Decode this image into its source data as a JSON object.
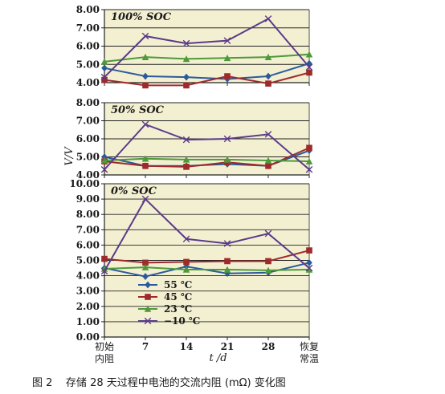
{
  "caption": "图 2    存储 28 天过程中电池的交流内阻 (mΩ) 变化图",
  "colors": {
    "panel_bg": "#f3f0d2",
    "series": [
      "#2b5a9c",
      "#9e2a2b",
      "#4e9a3a",
      "#5b3a8a"
    ]
  },
  "chart_data": {
    "type": "line",
    "xlabel": "t /d",
    "ylabel": "V/V",
    "x_categories": [
      "初始\n内阻",
      "7",
      "14",
      "21",
      "28",
      "恢复\n常温"
    ],
    "grid": "horizontal",
    "legend_position": "inside bottom-left of bottom panel",
    "series_names": [
      "55 ℃",
      "45 ℃",
      "23 ℃",
      "−10 ℃"
    ],
    "series_markers": [
      "diamond",
      "square",
      "triangle",
      "x"
    ],
    "panels": [
      {
        "title": "100% SOC",
        "ylim": [
          4.0,
          8.0
        ],
        "yticks": [
          "4.00",
          "5.00",
          "6.00",
          "7.00",
          "8.00"
        ],
        "series": [
          {
            "values": [
              4.8,
              4.35,
              4.3,
              4.2,
              4.35,
              5.05
            ]
          },
          {
            "values": [
              4.15,
              3.85,
              3.85,
              4.35,
              3.95,
              4.55
            ]
          },
          {
            "values": [
              5.15,
              5.4,
              5.3,
              5.35,
              5.4,
              5.55
            ]
          },
          {
            "values": [
              4.3,
              6.55,
              6.15,
              6.3,
              7.5,
              4.85
            ]
          }
        ]
      },
      {
        "title": "50% SOC",
        "ylim": [
          4.0,
          8.0
        ],
        "yticks": [
          "4.00",
          "5.00",
          "6.00",
          "7.00",
          "8.00"
        ],
        "series": [
          {
            "values": [
              5.0,
              4.5,
              4.5,
              4.6,
              4.5,
              5.35
            ]
          },
          {
            "values": [
              4.75,
              4.5,
              4.45,
              4.7,
              4.5,
              5.5
            ]
          },
          {
            "values": [
              4.8,
              4.9,
              4.85,
              4.85,
              4.8,
              4.75
            ]
          },
          {
            "values": [
              4.3,
              6.8,
              5.95,
              6.0,
              6.25,
              4.3
            ]
          }
        ]
      },
      {
        "title": "0% SOC",
        "ylim": [
          0.0,
          10.0
        ],
        "yticks": [
          "0.00",
          "1.00",
          "2.00",
          "3.00",
          "4.00",
          "5.00",
          "6.00",
          "7.00",
          "8.00",
          "9.00",
          "10.00"
        ],
        "series": [
          {
            "values": [
              4.5,
              3.95,
              4.6,
              4.15,
              4.2,
              4.85
            ]
          },
          {
            "values": [
              5.1,
              4.85,
              4.9,
              4.95,
              4.95,
              5.65
            ]
          },
          {
            "values": [
              4.45,
              4.55,
              4.4,
              4.4,
              4.35,
              4.4
            ]
          },
          {
            "values": [
              4.3,
              9.0,
              6.4,
              6.1,
              6.75,
              4.5
            ]
          }
        ]
      }
    ]
  }
}
